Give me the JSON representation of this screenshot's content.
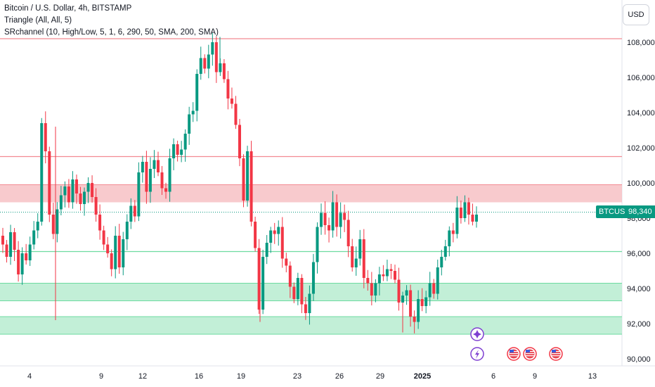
{
  "legend": {
    "title": "Bitcoin / U.S. Dollar, 4h, BITSTAMP",
    "indicator1": "Triangle (All, All, 5)",
    "indicator2": "SRchannel (10, High/Low, 5, 1, 6, 290, 50, SMA, 200, SMA)"
  },
  "currency_button": "USD",
  "symbol_tag": "BTCUSD",
  "price_tag": "98,340",
  "colors": {
    "up": "#089981",
    "down": "#f23645",
    "resistance_zone": "#f7c1c4",
    "support_zone": "#b7ecd0",
    "resistance_line": "#f28b92",
    "support_line": "#6ddba0",
    "event_purple": "#7e3fd1"
  },
  "chart_data": {
    "type": "candlestick",
    "symbol": "BTCUSD",
    "interval": "4h",
    "ylim": [
      89500,
      108800
    ],
    "y_ticks": [
      "90,000",
      "92,000",
      "94,000",
      "96,000",
      "98,000",
      "100,000",
      "102,000",
      "104,000",
      "106,000",
      "108,000"
    ],
    "x_ticks": [
      "4",
      "9",
      "12",
      "16",
      "19",
      "23",
      "26",
      "29",
      "2025",
      "6",
      "9",
      "13"
    ],
    "last_price": 98340,
    "path_closes": [
      96500,
      95800,
      97200,
      96200,
      94800,
      96000,
      95600,
      96500,
      97300,
      97800,
      103400,
      101800,
      98200,
      97100,
      98500,
      99300,
      99800,
      98900,
      100200,
      99400,
      98800,
      99500,
      100000,
      99200,
      98200,
      97300,
      96500,
      96000,
      95100,
      97000,
      95200,
      96800,
      97800,
      98700,
      98100,
      100600,
      101200,
      99500,
      100800,
      101300,
      100600,
      99700,
      99500,
      101400,
      102200,
      101600,
      101900,
      102800,
      103900,
      104100,
      106200,
      107100,
      106500,
      107300,
      108000,
      106300,
      106800,
      105900,
      104800,
      104500,
      103300,
      101400,
      99000,
      101800,
      97800,
      96300,
      92800,
      95800,
      96600,
      97300,
      97100,
      97500,
      95700,
      95300,
      94100,
      93400,
      94600,
      93100,
      92600,
      93700,
      95500,
      97500,
      98300,
      97600,
      97300,
      98900,
      97500,
      98300,
      97900,
      96400,
      95200,
      95700,
      96800,
      94600,
      94300,
      93600,
      94300,
      94800,
      94700,
      95100,
      95000,
      94500,
      93200,
      93600,
      93900,
      92400,
      92100,
      93400,
      93000,
      93500,
      94300,
      93700,
      95200,
      95800,
      96400,
      97300,
      97100,
      98600,
      98000,
      98900,
      98200,
      97800,
      98200
    ],
    "support_resistance": {
      "resistance_zone": [
        98900,
        99900
      ],
      "support_zone_1": [
        93300,
        94300
      ],
      "support_zone_2": [
        91400,
        92400
      ],
      "resistance_lines": [
        108200,
        101500
      ],
      "support_lines": [
        96100
      ],
      "current_price_line": 98340
    },
    "events": [
      {
        "type": "special",
        "icon": "sparkle",
        "date_index": 0
      },
      {
        "type": "economic",
        "icon": "lightning",
        "date_index": 0
      },
      {
        "type": "economic",
        "icon": "us-flag",
        "date_index": 1
      },
      {
        "type": "economic",
        "icon": "us-flag",
        "date_index": 2
      },
      {
        "type": "economic",
        "icon": "us-flag",
        "date_index": 3
      }
    ]
  }
}
